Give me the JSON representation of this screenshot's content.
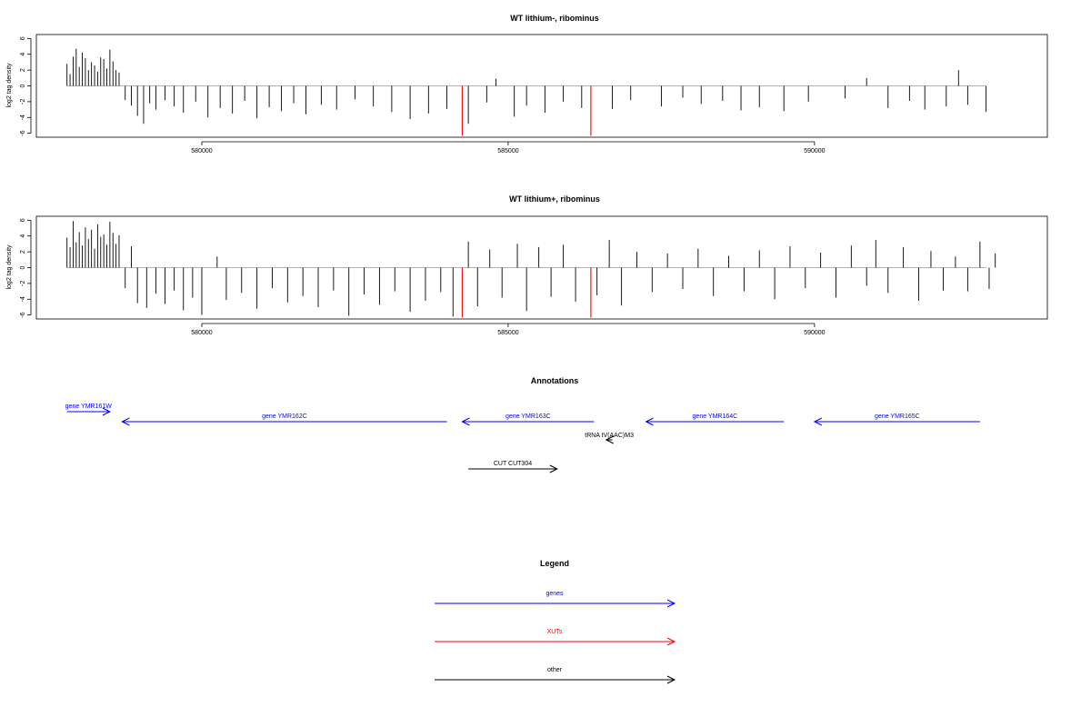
{
  "chart_data": [
    {
      "type": "bar",
      "title": "WT lithium-, ribominus",
      "ylabel": "log2 tag density",
      "xlabel": "",
      "xlim": [
        577300,
        593800
      ],
      "ylim": [
        -6.5,
        6.5
      ],
      "xticks": [
        580000,
        585000,
        590000
      ],
      "yticks": [
        6,
        4,
        2,
        0,
        -2,
        -4,
        -6
      ],
      "grid": false,
      "series": [
        {
          "values": [
            [
              577800,
              2.8
            ],
            [
              577850,
              1.5
            ],
            [
              577900,
              3.7
            ],
            [
              577950,
              4.7
            ],
            [
              578000,
              2.4
            ],
            [
              578050,
              4.2
            ],
            [
              578100,
              3.5
            ],
            [
              578150,
              2.0
            ],
            [
              578200,
              3.0
            ],
            [
              578250,
              2.6
            ],
            [
              578300,
              1.8
            ],
            [
              578350,
              3.6
            ],
            [
              578400,
              3.4
            ],
            [
              578450,
              2.2
            ],
            [
              578500,
              4.6
            ],
            [
              578550,
              3.1
            ],
            [
              578600,
              2.0
            ],
            [
              578650,
              1.7
            ],
            [
              578750,
              -1.8
            ],
            [
              578850,
              -2.5
            ],
            [
              578950,
              -3.8
            ],
            [
              579050,
              -4.8
            ],
            [
              579150,
              -2.2
            ],
            [
              579250,
              -3.0
            ],
            [
              579400,
              -1.8
            ],
            [
              579550,
              -2.6
            ],
            [
              579700,
              -3.4
            ],
            [
              579900,
              -2.0
            ],
            [
              580100,
              -4.0
            ],
            [
              580300,
              -2.8
            ],
            [
              580500,
              -3.5
            ],
            [
              580700,
              -1.9
            ],
            [
              580900,
              -4.1
            ],
            [
              581100,
              -2.7
            ],
            [
              581300,
              -3.2
            ],
            [
              581500,
              -2.2
            ],
            [
              581700,
              -3.6
            ],
            [
              581950,
              -2.4
            ],
            [
              582200,
              -3.0
            ],
            [
              582500,
              -1.7
            ],
            [
              582800,
              -2.6
            ],
            [
              583100,
              -3.3
            ],
            [
              583400,
              -4.2
            ],
            [
              583700,
              -3.5
            ],
            [
              584000,
              -2.9
            ],
            [
              584350,
              -4.8
            ],
            [
              584650,
              -2.1
            ],
            [
              584800,
              0.9
            ],
            [
              585100,
              -3.9
            ],
            [
              585300,
              -2.5
            ],
            [
              585600,
              -3.4
            ],
            [
              585900,
              -2.0
            ],
            [
              586200,
              -2.8
            ],
            [
              586700,
              -2.9
            ],
            [
              587000,
              -1.8
            ],
            [
              587500,
              -2.6
            ],
            [
              587850,
              -1.5
            ],
            [
              588150,
              -2.3
            ],
            [
              588500,
              -1.9
            ],
            [
              588800,
              -3.1
            ],
            [
              589100,
              -2.7
            ],
            [
              589500,
              -3.2
            ],
            [
              589900,
              -2.0
            ],
            [
              590500,
              -1.6
            ],
            [
              590850,
              1.0
            ],
            [
              591200,
              -2.8
            ],
            [
              591550,
              -1.9
            ],
            [
              591800,
              -3.0
            ],
            [
              592150,
              -2.6
            ],
            [
              592350,
              2.0
            ],
            [
              592500,
              -2.4
            ],
            [
              592800,
              -3.3
            ]
          ]
        },
        {
          "name": "XUTs",
          "values": [
            [
              584250,
              -6.3
            ],
            [
              586350,
              -6.3
            ]
          ]
        }
      ]
    },
    {
      "type": "bar",
      "title": "WT lithium+, ribominus",
      "ylabel": "log2 tag density",
      "xlabel": "",
      "xlim": [
        577300,
        593800
      ],
      "ylim": [
        -6.5,
        6.5
      ],
      "xticks": [
        580000,
        585000,
        590000
      ],
      "yticks": [
        6,
        4,
        2,
        0,
        -2,
        -4,
        -6
      ],
      "grid": false,
      "series": [
        {
          "values": [
            [
              577800,
              3.8
            ],
            [
              577850,
              2.6
            ],
            [
              577900,
              5.9
            ],
            [
              577950,
              3.2
            ],
            [
              578000,
              4.5
            ],
            [
              578050,
              2.8
            ],
            [
              578100,
              5.1
            ],
            [
              578150,
              3.6
            ],
            [
              578200,
              4.8
            ],
            [
              578250,
              2.4
            ],
            [
              578300,
              5.5
            ],
            [
              578350,
              3.9
            ],
            [
              578400,
              4.2
            ],
            [
              578450,
              2.9
            ],
            [
              578500,
              5.8
            ],
            [
              578550,
              4.4
            ],
            [
              578600,
              3.0
            ],
            [
              578650,
              4.1
            ],
            [
              578750,
              -2.6
            ],
            [
              578850,
              2.7
            ],
            [
              578950,
              -4.5
            ],
            [
              579100,
              -5.1
            ],
            [
              579250,
              -3.3
            ],
            [
              579400,
              -4.6
            ],
            [
              579550,
              -2.9
            ],
            [
              579700,
              -5.4
            ],
            [
              579850,
              -3.8
            ],
            [
              580000,
              -6.0
            ],
            [
              580250,
              1.4
            ],
            [
              580400,
              -4.1
            ],
            [
              580650,
              -3.2
            ],
            [
              580900,
              -5.2
            ],
            [
              581150,
              -2.6
            ],
            [
              581400,
              -4.4
            ],
            [
              581650,
              -3.6
            ],
            [
              581900,
              -5.0
            ],
            [
              582150,
              -2.9
            ],
            [
              582400,
              -6.1
            ],
            [
              582650,
              -3.4
            ],
            [
              582900,
              -4.7
            ],
            [
              583150,
              -3.0
            ],
            [
              583400,
              -5.6
            ],
            [
              583650,
              -4.2
            ],
            [
              583900,
              -3.1
            ],
            [
              584100,
              -6.2
            ],
            [
              584350,
              3.3
            ],
            [
              584500,
              -4.9
            ],
            [
              584700,
              2.3
            ],
            [
              584900,
              -3.8
            ],
            [
              585150,
              3.0
            ],
            [
              585300,
              -5.5
            ],
            [
              585500,
              2.6
            ],
            [
              585700,
              -3.7
            ],
            [
              585900,
              2.9
            ],
            [
              586100,
              -4.3
            ],
            [
              586450,
              -3.5
            ],
            [
              586650,
              3.5
            ],
            [
              586850,
              -4.8
            ],
            [
              587100,
              2.0
            ],
            [
              587350,
              -3.1
            ],
            [
              587600,
              1.8
            ],
            [
              587850,
              -2.7
            ],
            [
              588100,
              2.4
            ],
            [
              588350,
              -3.6
            ],
            [
              588600,
              1.5
            ],
            [
              588850,
              -3.0
            ],
            [
              589100,
              2.2
            ],
            [
              589350,
              -4.0
            ],
            [
              589600,
              2.7
            ],
            [
              589850,
              -2.6
            ],
            [
              590100,
              1.9
            ],
            [
              590350,
              -3.8
            ],
            [
              590600,
              2.8
            ],
            [
              590850,
              -2.3
            ],
            [
              591000,
              3.5
            ],
            [
              591200,
              -3.2
            ],
            [
              591450,
              2.6
            ],
            [
              591700,
              -4.2
            ],
            [
              591900,
              2.1
            ],
            [
              592100,
              -2.9
            ],
            [
              592300,
              1.4
            ],
            [
              592500,
              -3.0
            ],
            [
              592700,
              3.3
            ],
            [
              592850,
              -2.7
            ],
            [
              592950,
              1.8
            ]
          ]
        },
        {
          "name": "XUTs",
          "values": [
            [
              584250,
              -6.3
            ],
            [
              586350,
              -6.3
            ]
          ]
        }
      ]
    }
  ],
  "annotations": {
    "title": "Annotations",
    "items": [
      {
        "label": "gene YMR161W",
        "start": 577800,
        "end": 578500,
        "strand": "+",
        "class": "gene",
        "row": 0
      },
      {
        "label": "gene YMR162C",
        "start": 578700,
        "end": 584000,
        "strand": "-",
        "class": "gene",
        "row": 1
      },
      {
        "label": "gene YMR163C",
        "start": 584250,
        "end": 586400,
        "strand": "-",
        "class": "gene",
        "row": 1
      },
      {
        "label": "gene YMR164C",
        "start": 587250,
        "end": 589500,
        "strand": "-",
        "class": "gene",
        "row": 1
      },
      {
        "label": "gene YMR165C",
        "start": 590000,
        "end": 592700,
        "strand": "-",
        "class": "gene",
        "row": 1
      },
      {
        "label": "tRNA tV(AAC)M3",
        "start": 586600,
        "end": 586700,
        "strand": "-",
        "class": "other",
        "row": 2
      },
      {
        "label": "CUT CUT304",
        "start": 584350,
        "end": 585800,
        "strand": "+",
        "class": "other",
        "row": 3
      }
    ]
  },
  "legend": {
    "title": "Legend",
    "items": [
      {
        "label": "genes",
        "color": "#0000ff"
      },
      {
        "label": "XUTs",
        "color": "#ff0000"
      },
      {
        "label": "other",
        "color": "#000000"
      }
    ]
  },
  "colors": {
    "genes": "#0000ff",
    "xuts": "#ff0000",
    "other": "#000000",
    "baseline": "#999999"
  }
}
